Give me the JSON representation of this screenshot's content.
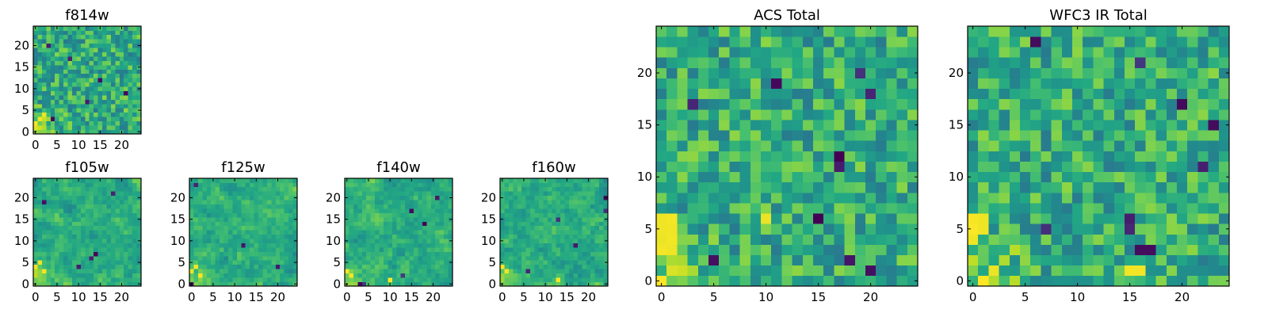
{
  "chart_data": [
    {
      "id": "f814w",
      "type": "heatmap",
      "title": "f814w",
      "grid_size": 25,
      "xlim": [
        -0.5,
        24.5
      ],
      "ylim": [
        -0.5,
        24.5
      ],
      "xticks": [
        0,
        5,
        10,
        15,
        20
      ],
      "yticks": [
        0,
        5,
        10,
        15,
        20
      ],
      "colormap": "viridis",
      "seed": 11,
      "bright_corner": "bottom-left",
      "noise_scale": 1,
      "smooth": 0,
      "dark_spots": [
        [
          8,
          17
        ],
        [
          4,
          3
        ],
        [
          3,
          20
        ],
        [
          12,
          7
        ],
        [
          15,
          12
        ],
        [
          21,
          9
        ]
      ],
      "bright_spots": [
        [
          0,
          2
        ],
        [
          1,
          3
        ],
        [
          2,
          4
        ]
      ]
    },
    {
      "id": "f105w",
      "type": "heatmap",
      "title": "f105w",
      "grid_size": 25,
      "xlim": [
        -0.5,
        24.5
      ],
      "ylim": [
        -0.5,
        24.5
      ],
      "xticks": [
        0,
        5,
        10,
        15,
        20
      ],
      "yticks": [
        0,
        5,
        10,
        15,
        20
      ],
      "colormap": "viridis",
      "seed": 23,
      "bright_corner": "bottom-left",
      "noise_scale": 1,
      "smooth": 1,
      "dark_spots": [
        [
          10,
          4
        ],
        [
          13,
          6
        ],
        [
          14,
          7
        ],
        [
          2,
          19
        ],
        [
          18,
          21
        ]
      ],
      "bright_spots": [
        [
          0,
          4
        ],
        [
          1,
          5
        ],
        [
          2,
          3
        ]
      ]
    },
    {
      "id": "f125w",
      "type": "heatmap",
      "title": "f125w",
      "grid_size": 25,
      "xlim": [
        -0.5,
        24.5
      ],
      "ylim": [
        -0.5,
        24.5
      ],
      "xticks": [
        0,
        5,
        10,
        15,
        20
      ],
      "yticks": [
        0,
        5,
        10,
        15,
        20
      ],
      "colormap": "viridis",
      "seed": 37,
      "bright_corner": "bottom-left",
      "noise_scale": 1,
      "smooth": 1,
      "dark_spots": [
        [
          0,
          0
        ],
        [
          1,
          23
        ],
        [
          12,
          9
        ],
        [
          20,
          4
        ]
      ],
      "bright_spots": [
        [
          0,
          3
        ],
        [
          1,
          4
        ],
        [
          2,
          2
        ]
      ]
    },
    {
      "id": "f140w",
      "type": "heatmap",
      "title": "f140w",
      "grid_size": 25,
      "xlim": [
        -0.5,
        24.5
      ],
      "ylim": [
        -0.5,
        24.5
      ],
      "xticks": [
        0,
        5,
        10,
        15,
        20
      ],
      "yticks": [
        0,
        5,
        10,
        15,
        20
      ],
      "colormap": "viridis",
      "seed": 41,
      "bright_corner": "bottom-left",
      "noise_scale": 1,
      "smooth": 1,
      "dark_spots": [
        [
          3,
          0
        ],
        [
          4,
          0
        ],
        [
          13,
          2
        ],
        [
          15,
          17
        ],
        [
          18,
          14
        ],
        [
          21,
          20
        ]
      ],
      "bright_spots": [
        [
          0,
          3
        ],
        [
          1,
          2
        ],
        [
          10,
          1
        ]
      ]
    },
    {
      "id": "f160w",
      "type": "heatmap",
      "title": "f160w",
      "grid_size": 25,
      "xlim": [
        -0.5,
        24.5
      ],
      "ylim": [
        -0.5,
        24.5
      ],
      "xticks": [
        0,
        5,
        10,
        15,
        20
      ],
      "yticks": [
        0,
        5,
        10,
        15,
        20
      ],
      "colormap": "viridis",
      "seed": 53,
      "bright_corner": "bottom-left",
      "noise_scale": 1,
      "smooth": 1,
      "dark_spots": [
        [
          24,
          20
        ],
        [
          24,
          17
        ],
        [
          17,
          9
        ],
        [
          13,
          15
        ],
        [
          6,
          3
        ]
      ],
      "bright_spots": [
        [
          0,
          4
        ],
        [
          1,
          3
        ],
        [
          13,
          1
        ]
      ]
    },
    {
      "id": "acs_total",
      "type": "heatmap",
      "title": "ACS Total",
      "grid_size": 25,
      "xlim": [
        -0.5,
        24.5
      ],
      "ylim": [
        -0.5,
        24.5
      ],
      "xticks": [
        0,
        5,
        10,
        15,
        20
      ],
      "yticks": [
        0,
        5,
        10,
        15,
        20
      ],
      "colormap": "viridis",
      "seed": 67,
      "bright_corner": "bottom-left",
      "noise_scale": 1,
      "smooth": 0,
      "dark_spots": [
        [
          17,
          11
        ],
        [
          17,
          12
        ],
        [
          15,
          6
        ],
        [
          5,
          2
        ],
        [
          11,
          19
        ],
        [
          19,
          20
        ],
        [
          20,
          18
        ],
        [
          18,
          2
        ],
        [
          3,
          17
        ],
        [
          20,
          1
        ]
      ],
      "bright_spots": [
        [
          0,
          3
        ],
        [
          0,
          4
        ],
        [
          0,
          5
        ],
        [
          0,
          6
        ],
        [
          1,
          3
        ],
        [
          1,
          4
        ],
        [
          1,
          5
        ],
        [
          1,
          6
        ],
        [
          10,
          6
        ]
      ]
    },
    {
      "id": "wfc3_ir_total",
      "type": "heatmap",
      "title": "WFC3 IR Total",
      "grid_size": 25,
      "xlim": [
        -0.5,
        24.5
      ],
      "ylim": [
        -0.5,
        24.5
      ],
      "xticks": [
        0,
        5,
        10,
        15,
        20
      ],
      "yticks": [
        0,
        5,
        10,
        15,
        20
      ],
      "colormap": "viridis",
      "seed": 79,
      "bright_corner": "bottom-left",
      "noise_scale": 1,
      "smooth": 0,
      "dark_spots": [
        [
          6,
          23
        ],
        [
          16,
          21
        ],
        [
          7,
          5
        ],
        [
          15,
          5
        ],
        [
          15,
          6
        ],
        [
          16,
          3
        ],
        [
          17,
          3
        ],
        [
          22,
          11
        ],
        [
          23,
          15
        ],
        [
          20,
          17
        ]
      ],
      "bright_spots": [
        [
          0,
          4
        ],
        [
          0,
          5
        ],
        [
          0,
          6
        ],
        [
          1,
          5
        ],
        [
          1,
          6
        ],
        [
          15,
          1
        ],
        [
          16,
          1
        ]
      ]
    }
  ]
}
